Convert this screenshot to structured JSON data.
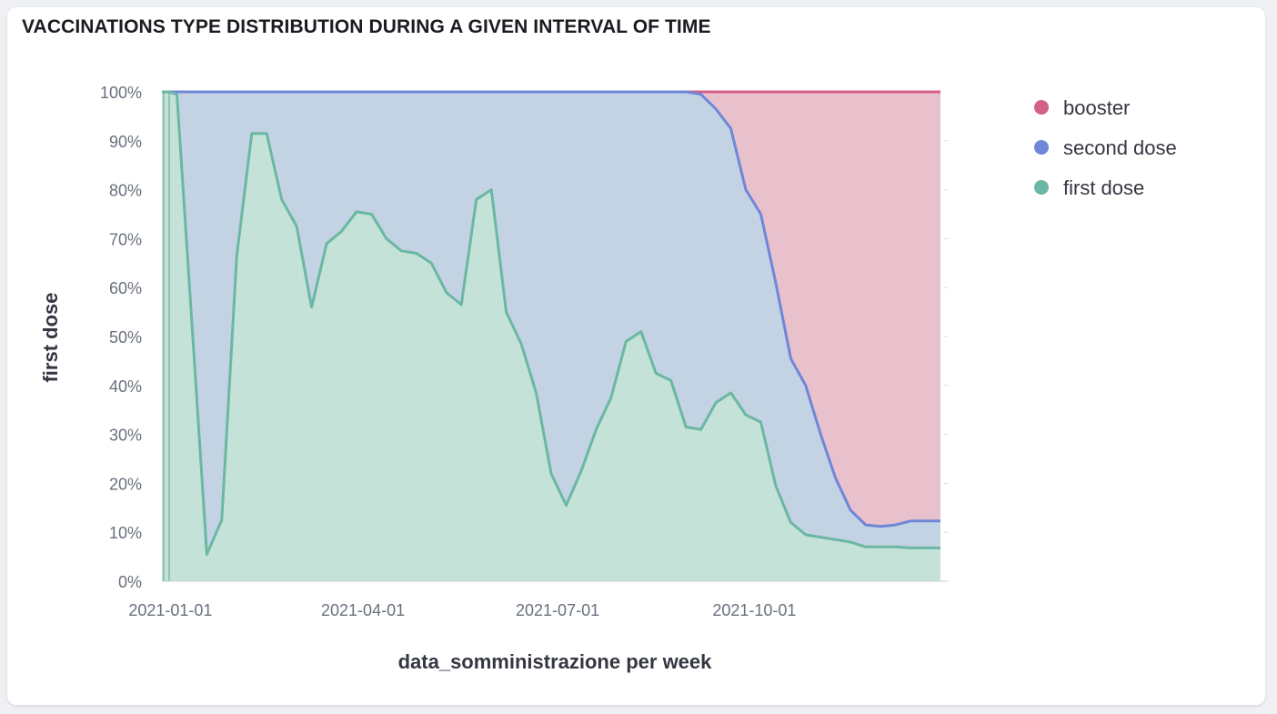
{
  "panel": {
    "title": "VACCINATIONS TYPE DISTRIBUTION DURING A GIVEN INTERVAL OF TIME"
  },
  "colors": {
    "booster_line": "#d36086",
    "booster_fill": "#e8c1cd",
    "second_line": "#6f87d8",
    "second_fill": "#c4d3e3",
    "first_line": "#6bb7a4",
    "first_fill": "#c4e2d7",
    "grid": "#d3dae6"
  },
  "chart_data": {
    "type": "area",
    "stacked": "percent",
    "xlabel": "data_somministrazione per week",
    "ylabel": "first dose",
    "x_ticks": [
      "2021-01-01",
      "2021-04-01",
      "2021-07-01",
      "2021-10-01"
    ],
    "y_ticks": [
      "0%",
      "10%",
      "20%",
      "30%",
      "40%",
      "50%",
      "60%",
      "70%",
      "80%",
      "90%",
      "100%"
    ],
    "ylim": [
      0,
      100
    ],
    "xlim": [
      "2020-12-28",
      "2021-12-27"
    ],
    "legend_position": "top-right",
    "dates": [
      "2020-12-28",
      "2020-12-31",
      "2021-01-04",
      "2021-01-11",
      "2021-01-18",
      "2021-01-25",
      "2021-02-01",
      "2021-02-08",
      "2021-02-15",
      "2021-02-22",
      "2021-03-01",
      "2021-03-08",
      "2021-03-15",
      "2021-03-22",
      "2021-03-29",
      "2021-04-05",
      "2021-04-12",
      "2021-04-19",
      "2021-04-26",
      "2021-05-03",
      "2021-05-10",
      "2021-05-17",
      "2021-05-24",
      "2021-05-31",
      "2021-06-07",
      "2021-06-14",
      "2021-06-21",
      "2021-06-28",
      "2021-07-05",
      "2021-07-12",
      "2021-07-19",
      "2021-07-26",
      "2021-08-02",
      "2021-08-09",
      "2021-08-16",
      "2021-08-23",
      "2021-08-30",
      "2021-09-06",
      "2021-09-13",
      "2021-09-20",
      "2021-09-27",
      "2021-10-04",
      "2021-10-11",
      "2021-10-18",
      "2021-10-25",
      "2021-11-01",
      "2021-11-08",
      "2021-11-15",
      "2021-11-22",
      "2021-11-29",
      "2021-12-06",
      "2021-12-13",
      "2021-12-20",
      "2021-12-27"
    ],
    "series": [
      {
        "name": "first dose",
        "values": [
          100,
          100,
          99.5,
          53,
          5.5,
          12.5,
          66.5,
          91.5,
          91.5,
          78,
          72.5,
          56,
          69,
          71.5,
          75.5,
          75,
          70,
          67.5,
          67,
          65,
          59,
          56.5,
          78,
          80,
          55,
          48.5,
          38.5,
          22,
          15.5,
          22.5,
          31,
          37.5,
          49,
          51,
          42.5,
          41,
          31.5,
          31,
          36.5,
          38.5,
          34,
          32.5,
          19.5,
          12,
          9.5,
          9,
          8.5,
          8,
          7,
          7,
          7,
          6.8,
          6.8,
          6.8
        ]
      },
      {
        "name": "second dose",
        "values": [
          0,
          0,
          0.5,
          47,
          94.5,
          87.5,
          33.5,
          8.5,
          8.5,
          22,
          27.5,
          44,
          31,
          28.5,
          24.5,
          25,
          30,
          32.5,
          33,
          35,
          41,
          43.5,
          22,
          20,
          45,
          51.5,
          61.5,
          78,
          84.5,
          77.5,
          69,
          62.5,
          51,
          49,
          57.5,
          59,
          68.5,
          68.5,
          60,
          54,
          46,
          42.5,
          41.5,
          33.5,
          30.5,
          21,
          12.5,
          6.5,
          4.5,
          4.2,
          4.5,
          5.5,
          5.5,
          5.5
        ]
      },
      {
        "name": "booster",
        "values": [
          0,
          0,
          0,
          0,
          0,
          0,
          0,
          0,
          0,
          0,
          0,
          0,
          0,
          0,
          0,
          0,
          0,
          0,
          0,
          0,
          0,
          0,
          0,
          0,
          0,
          0,
          0,
          0,
          0,
          0,
          0,
          0,
          0,
          0,
          0,
          0,
          0,
          0.5,
          3.5,
          7.5,
          20,
          25,
          39,
          54.5,
          60,
          70,
          79,
          85.5,
          88.5,
          88.8,
          88.5,
          87.7,
          87.7,
          87.7
        ]
      }
    ]
  }
}
